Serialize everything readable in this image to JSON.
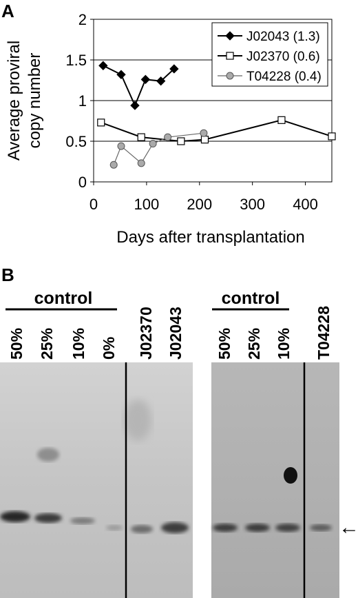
{
  "panel_a": {
    "label": "A"
  },
  "panel_b": {
    "label": "B"
  },
  "chart_data": {
    "type": "line",
    "title": "",
    "xlabel": "Days after transplantation",
    "ylabel": "Average proviral copy number",
    "xlim": [
      0,
      450
    ],
    "ylim": [
      0,
      2
    ],
    "x_ticks": [
      "0",
      "100",
      "200",
      "300",
      "400"
    ],
    "y_ticks": [
      "0",
      "0.5",
      "1",
      "1.5",
      "2"
    ],
    "grid": "horizontal",
    "legend_position": "top-right",
    "series": [
      {
        "name": "J02043 (1.3)",
        "marker": "diamond",
        "marker_fill": "#000000",
        "line_color": "#000000",
        "x": [
          18,
          52,
          78,
          98,
          127,
          152
        ],
        "y": [
          1.43,
          1.32,
          0.94,
          1.26,
          1.24,
          1.39
        ]
      },
      {
        "name": "J02370 (0.6)",
        "marker": "square",
        "marker_fill": "#ffffff",
        "line_color": "#000000",
        "x": [
          14,
          90,
          165,
          210,
          355,
          450
        ],
        "y": [
          0.73,
          0.55,
          0.5,
          0.52,
          0.76,
          0.56
        ]
      },
      {
        "name": "T04228 (0.4)",
        "marker": "circle",
        "marker_fill": "#aaaaaa",
        "line_color": "#666666",
        "x": [
          38,
          52,
          90,
          112,
          140,
          208
        ],
        "y": [
          0.21,
          0.44,
          0.23,
          0.47,
          0.55,
          0.6
        ]
      }
    ]
  },
  "blot": {
    "group1_header": "control",
    "group1_lanes": [
      "50%",
      "25%",
      "10%",
      "0%"
    ],
    "group1_extra_lanes": [
      "J02370",
      "J02043"
    ],
    "group2_header": "control",
    "group2_lanes": [
      "50%",
      "25%",
      "10%"
    ],
    "group2_extra_lanes": [
      "T04228"
    ],
    "arrow": "←"
  }
}
